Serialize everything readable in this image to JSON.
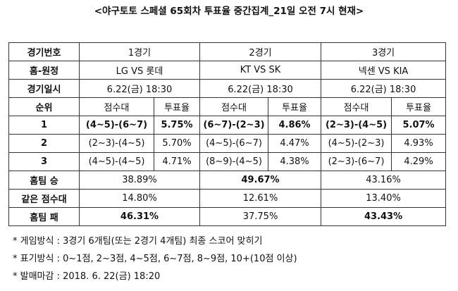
{
  "title": "<야구토토 스페셜 65회차 투표율 중간집계_21일 오전 7시 현재>",
  "table": {
    "rows": [
      [
        "경기번호",
        "1경기",
        "2경기",
        "3경기"
      ],
      [
        "홈-원정",
        "LG VS 롯데",
        "KT VS SK",
        "넥센 VS KIA"
      ],
      [
        "경기일시",
        "6.22(금) 18:30",
        "6.22(금) 18:30",
        "6.22(금) 18:30"
      ],
      [
        "순위",
        "점수대",
        "투표율",
        "점수대",
        "투표율",
        "점수대",
        "투표율"
      ],
      [
        "1",
        "(4~5)-(6~7)",
        "5.75%",
        "(6~7)-(2~3)",
        "4.86%",
        "(2~3)-(4~5)",
        "5.07%"
      ],
      [
        "2",
        "(2~3)-(4~5)",
        "5.70%",
        "(4~5)-(6~7)",
        "4.47%",
        "(4~5)-(2~3)",
        "4.93%"
      ],
      [
        "3",
        "(4~5)-(4~5)",
        "4.71%",
        "(8~9)-(4~5)",
        "4.38%",
        "(2~3)-(6~7)",
        "4.29%"
      ],
      [
        "홈팀 승",
        "38.89%",
        "49.67%",
        "43.16%"
      ],
      [
        "같은 점수대",
        "14.80%",
        "12.61%",
        "13.40%"
      ],
      [
        "홈팀 패",
        "46.31%",
        "37.75%",
        "43.43%"
      ]
    ]
  },
  "notes": [
    "* 게임방식 : 3경기 6개팀(또는 2경기 4개팀) 최종 스코어 맞히기",
    "* 표기방식 : 0~1점, 2~3점, 4~5점, 6~7점, 8~9점, 10+(10점 이상)",
    "* 발매마감 : 2018. 6. 22(금) 18:20"
  ]
}
